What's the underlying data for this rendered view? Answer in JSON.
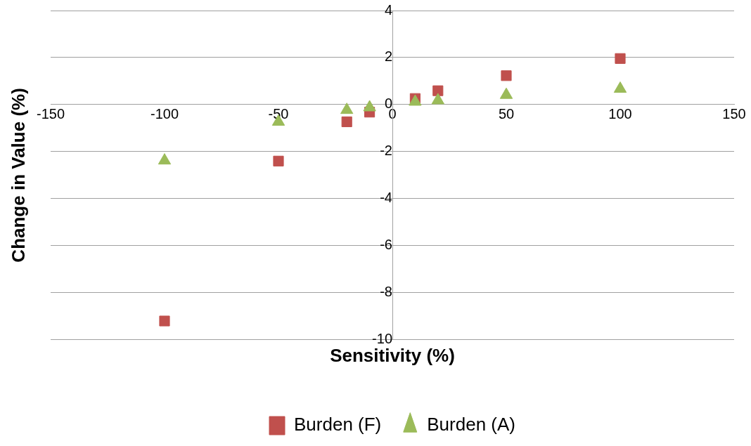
{
  "chart_data": {
    "type": "scatter",
    "xlabel": "Sensitivity (%)",
    "ylabel": "Change in Value (%)",
    "x": [
      -100,
      -50,
      -20,
      -10,
      10,
      20,
      50,
      100
    ],
    "series": [
      {
        "name": "Burden (F)",
        "color": "#c0504d",
        "marker": "square",
        "values": [
          -9.2,
          -2.4,
          -0.73,
          -0.32,
          0.26,
          0.59,
          1.23,
          1.96
        ]
      },
      {
        "name": "Burden (A)",
        "color": "#9bbb59",
        "marker": "triangle",
        "values": [
          -2.38,
          -0.73,
          -0.23,
          -0.12,
          0.12,
          0.18,
          0.41,
          0.67
        ]
      }
    ],
    "xlim": [
      -150,
      150
    ],
    "xticks": [
      -150,
      -100,
      -50,
      0,
      50,
      100,
      150
    ],
    "ylim": [
      -10,
      4
    ],
    "yticks": [
      -10,
      -8,
      -6,
      -4,
      -2,
      0,
      2,
      4
    ],
    "grid": "y",
    "legend": "bottom"
  }
}
